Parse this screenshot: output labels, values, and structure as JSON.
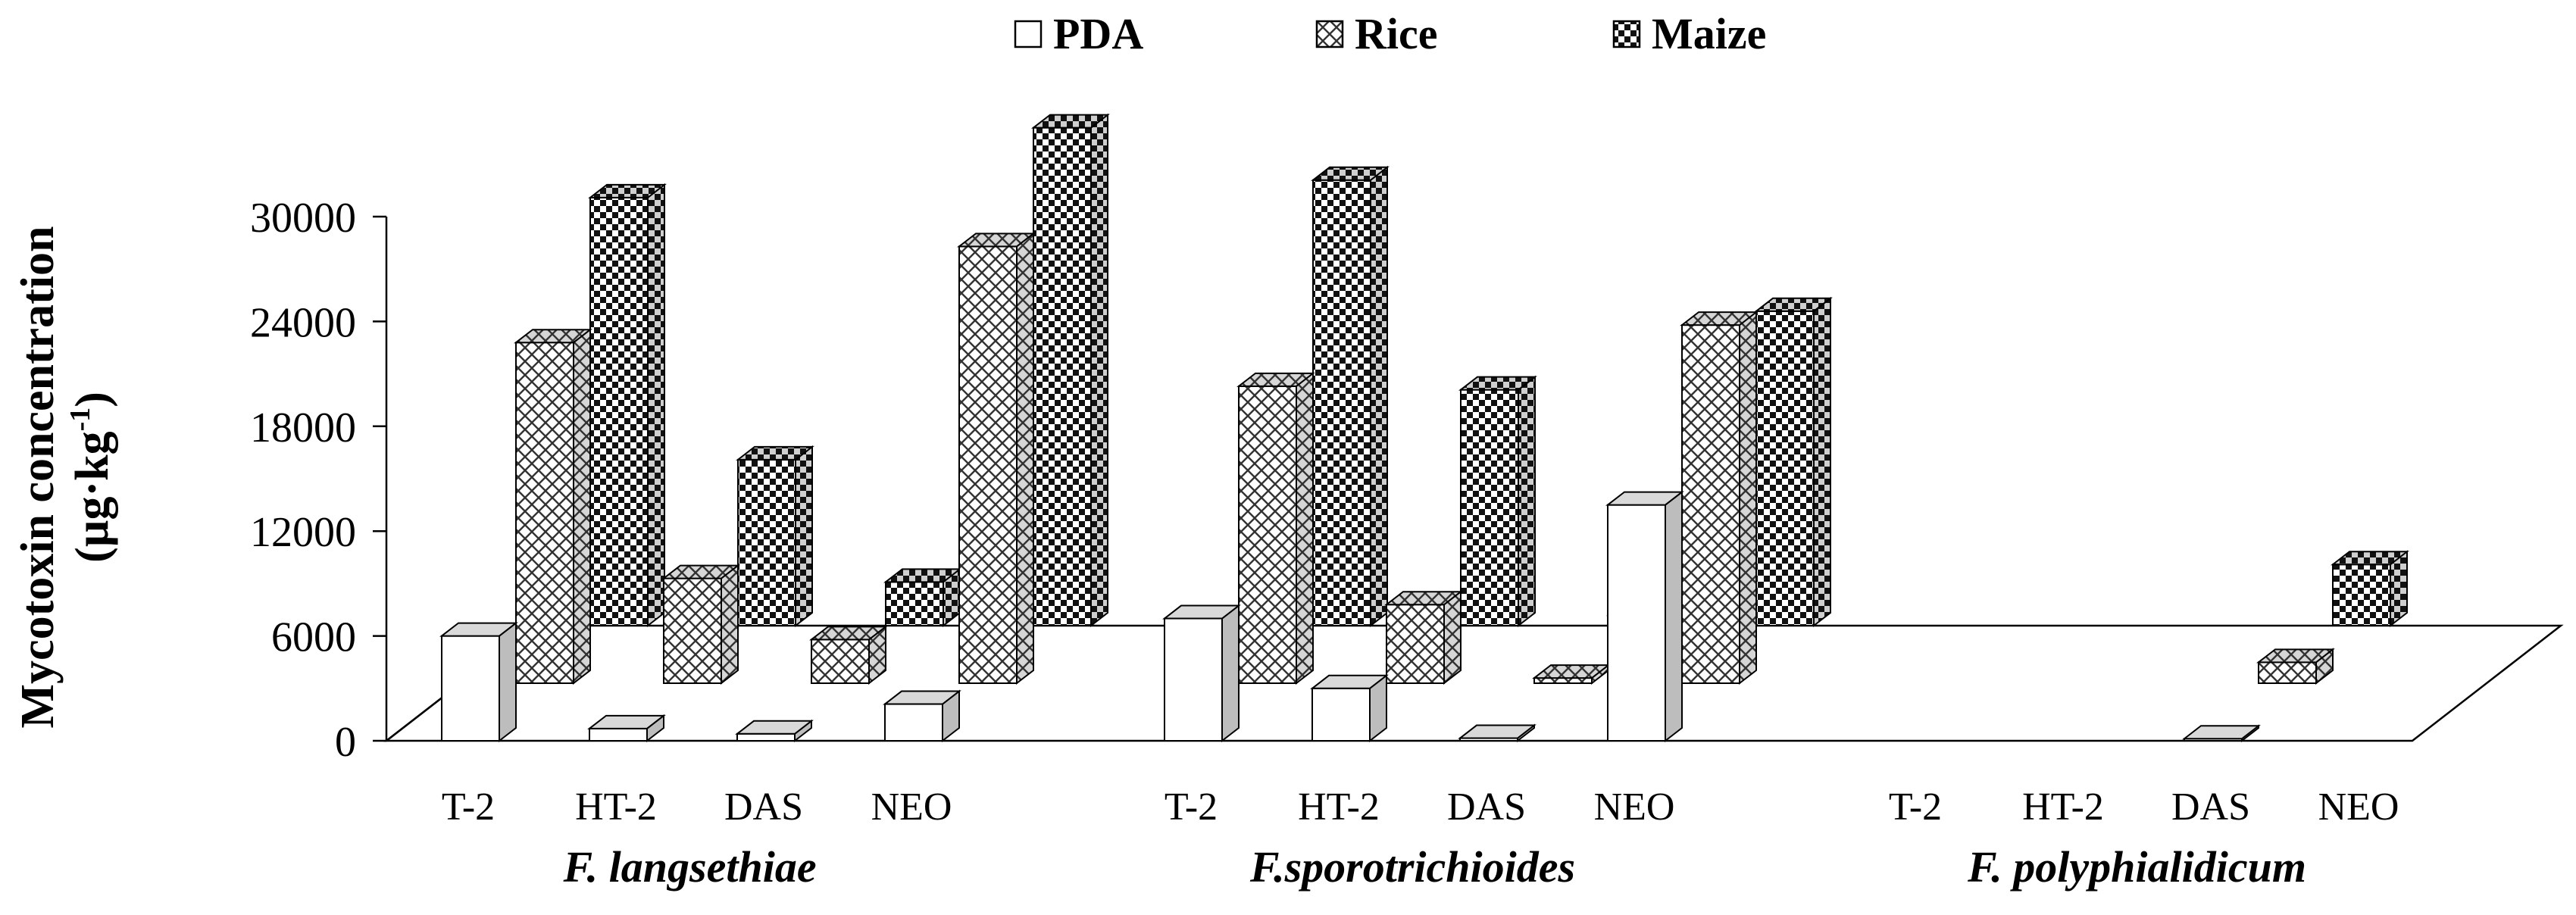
{
  "chart_data": {
    "type": "bar",
    "subtype": "3d-clustered-depth",
    "title": "",
    "ylabel": "Mycotoxin concentration",
    "ylabel_unit": "(µg·kg",
    "ylabel_unit_sup": "-1",
    "ylabel_unit_close": ")",
    "ylim": [
      0,
      30000
    ],
    "yticks": [
      "0",
      "6000",
      "12000",
      "18000",
      "24000",
      "30000"
    ],
    "ytick_values": [
      0,
      6000,
      12000,
      18000,
      24000,
      30000
    ],
    "legend": {
      "placement": "top-center"
    },
    "groups": [
      {
        "name": "F. langsethiae",
        "categories": [
          "T-2",
          "HT-2",
          "DAS",
          "NEO"
        ]
      },
      {
        "name": "F.sporotrichioides",
        "categories": [
          "T-2",
          "HT-2",
          "DAS",
          "NEO"
        ]
      },
      {
        "name": "F. polyphialidicum",
        "categories": [
          "T-2",
          "HT-2",
          "DAS",
          "NEO"
        ]
      }
    ],
    "series": [
      {
        "name": "PDA",
        "pattern": "plain",
        "color": "#ffffff",
        "values": [
          6000,
          700,
          400,
          2100,
          7000,
          3000,
          150,
          13500,
          0,
          0,
          120,
          0
        ]
      },
      {
        "name": "Rice",
        "pattern": "crosshatch",
        "color": "#ffffff",
        "values": [
          19500,
          6000,
          2500,
          25000,
          17000,
          4500,
          300,
          20500,
          0,
          0,
          1200,
          0
        ]
      },
      {
        "name": "Maize",
        "pattern": "checker",
        "color": "#111111",
        "values": [
          24500,
          9500,
          2500,
          28500,
          25500,
          13500,
          600,
          18000,
          0,
          0,
          3500,
          0
        ]
      }
    ]
  }
}
